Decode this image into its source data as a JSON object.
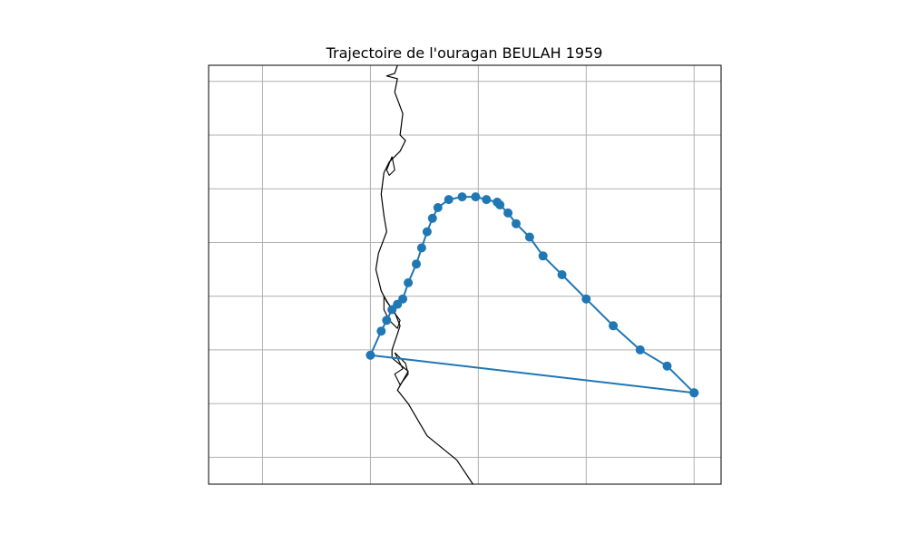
{
  "chart_data": {
    "type": "map-track",
    "title": "Trajectoire de l'ouragan BEULAH 1959",
    "xlabel": "",
    "ylabel": "",
    "grid": true,
    "legend": "none",
    "storm_name": "BEULAH",
    "year": 1959,
    "map_extent": {
      "lon": [
        -101.0,
        -91.5
      ],
      "lat": [
        19.5,
        27.3
      ]
    },
    "gridlines": {
      "lon": [
        -100,
        -98,
        -96,
        -94,
        -92
      ],
      "lat": [
        20,
        21,
        22,
        23,
        24,
        25,
        26,
        27
      ]
    },
    "track": [
      {
        "lon": -92.0,
        "lat": 21.2
      },
      {
        "lon": -92.5,
        "lat": 21.7
      },
      {
        "lon": -93.0,
        "lat": 22.0
      },
      {
        "lon": -93.5,
        "lat": 22.45
      },
      {
        "lon": -94.0,
        "lat": 22.95
      },
      {
        "lon": -94.45,
        "lat": 23.4
      },
      {
        "lon": -94.8,
        "lat": 23.75
      },
      {
        "lon": -95.05,
        "lat": 24.1
      },
      {
        "lon": -95.3,
        "lat": 24.35
      },
      {
        "lon": -95.45,
        "lat": 24.55
      },
      {
        "lon": -95.6,
        "lat": 24.7
      },
      {
        "lon": -95.65,
        "lat": 24.75
      },
      {
        "lon": -95.85,
        "lat": 24.8
      },
      {
        "lon": -96.05,
        "lat": 24.85
      },
      {
        "lon": -96.3,
        "lat": 24.85
      },
      {
        "lon": -96.55,
        "lat": 24.8
      },
      {
        "lon": -96.75,
        "lat": 24.65
      },
      {
        "lon": -96.85,
        "lat": 24.45
      },
      {
        "lon": -96.95,
        "lat": 24.2
      },
      {
        "lon": -97.05,
        "lat": 23.9
      },
      {
        "lon": -97.15,
        "lat": 23.6
      },
      {
        "lon": -97.3,
        "lat": 23.25
      },
      {
        "lon": -97.4,
        "lat": 22.95
      },
      {
        "lon": -97.5,
        "lat": 22.85
      },
      {
        "lon": -97.6,
        "lat": 22.75
      },
      {
        "lon": -97.7,
        "lat": 22.55
      },
      {
        "lon": -97.8,
        "lat": 22.35
      },
      {
        "lon": -98.0,
        "lat": 21.9
      },
      {
        "lon": -92.0,
        "lat": 21.2
      }
    ],
    "coastline": [
      [
        -97.5,
        27.3
      ],
      [
        -97.55,
        27.15
      ],
      [
        -97.7,
        27.1
      ],
      [
        -97.5,
        27.05
      ],
      [
        -97.55,
        26.8
      ],
      [
        -97.4,
        26.4
      ],
      [
        -97.45,
        26.0
      ],
      [
        -97.35,
        25.9
      ],
      [
        -97.45,
        25.7
      ],
      [
        -97.55,
        25.6
      ],
      [
        -97.65,
        25.5
      ],
      [
        -97.75,
        25.3
      ],
      [
        -97.8,
        24.9
      ],
      [
        -97.75,
        24.5
      ],
      [
        -97.7,
        24.2
      ],
      [
        -97.85,
        23.8
      ],
      [
        -97.9,
        23.5
      ],
      [
        -97.8,
        23.1
      ],
      [
        -97.7,
        22.9
      ],
      [
        -97.55,
        22.7
      ],
      [
        -97.45,
        22.45
      ],
      [
        -97.5,
        22.3
      ],
      [
        -97.6,
        22.0
      ],
      [
        -97.6,
        21.85
      ],
      [
        -97.3,
        21.6
      ],
      [
        -97.5,
        21.25
      ],
      [
        -97.3,
        21.0
      ],
      [
        -96.95,
        20.4
      ],
      [
        -96.4,
        19.95
      ],
      [
        -96.1,
        19.5
      ]
    ],
    "lagoons": [
      [
        [
          -97.6,
          25.6
        ],
        [
          -97.55,
          25.35
        ],
        [
          -97.65,
          25.25
        ],
        [
          -97.7,
          25.35
        ],
        [
          -97.6,
          25.6
        ]
      ],
      [
        [
          -97.75,
          23.0
        ],
        [
          -97.6,
          22.75
        ],
        [
          -97.45,
          22.55
        ],
        [
          -97.5,
          22.4
        ],
        [
          -97.65,
          22.55
        ],
        [
          -97.75,
          22.75
        ],
        [
          -97.75,
          23.0
        ]
      ],
      [
        [
          -97.55,
          21.95
        ],
        [
          -97.35,
          21.75
        ],
        [
          -97.3,
          21.55
        ],
        [
          -97.45,
          21.35
        ],
        [
          -97.55,
          21.55
        ],
        [
          -97.4,
          21.65
        ],
        [
          -97.55,
          21.95
        ]
      ]
    ],
    "colors": {
      "track": "#1f77b4",
      "coastline": "#000000",
      "grid": "#b0b0b0",
      "frame": "#000000",
      "background": "#ffffff"
    }
  }
}
